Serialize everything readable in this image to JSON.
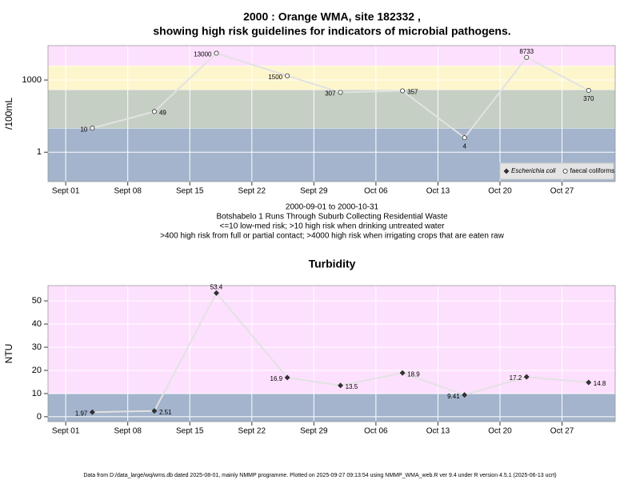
{
  "chart_data": [
    {
      "type": "line",
      "title": [
        "2000 : Orange WMA, site 182332 ,",
        "showing high risk guidelines for indicators of microbial pathogens."
      ],
      "notes": [
        "2000-09-01 to 2000-10-31",
        "Botshabelo 1 Runs Through Suburb Collecting Residential Waste",
        "<=10 low-med risk; >10 high risk when drinking untreated water",
        ">400 high risk from full or partial contact; >4000 high risk when irrigating crops that are eaten raw"
      ],
      "y_label": "/100mL",
      "log_y": true,
      "x": [
        "09-04",
        "09-11",
        "09-18",
        "09-26",
        "10-02",
        "10-09",
        "10-16",
        "10-23",
        "10-30"
      ],
      "series": [
        {
          "name": "Escherichia coli",
          "marker": "diamond",
          "color": "#333333",
          "values": [
            null,
            null,
            null,
            null,
            null,
            null,
            null,
            null,
            null
          ]
        },
        {
          "name": "faecal coliforms",
          "marker": "circle",
          "color": "#ffffff",
          "values": [
            10,
            49,
            13000,
            1500,
            307,
            357,
            4,
            8733,
            370
          ]
        }
      ],
      "line_color": "#e2e2e2",
      "bands": [
        {
          "from": 0.06,
          "to": 10,
          "color": "#a3b4cc"
        },
        {
          "from": 10,
          "to": 400,
          "color": "#c5cfc4"
        },
        {
          "from": 400,
          "to": 4000,
          "color": "#fdf6cc"
        },
        {
          "from": 4000,
          "to": 27000,
          "color": "#fde0fd"
        }
      ],
      "xlim": [
        "08-30",
        "11-02"
      ],
      "xticks": [
        {
          "value": "09-01",
          "label": "Sept 01"
        },
        {
          "value": "09-08",
          "label": "Sept 08"
        },
        {
          "value": "09-15",
          "label": "Sept 15"
        },
        {
          "value": "09-22",
          "label": "Sept 22"
        },
        {
          "value": "09-29",
          "label": "Sept 29"
        },
        {
          "value": "10-06",
          "label": "Oct 06"
        },
        {
          "value": "10-13",
          "label": "Oct 13"
        },
        {
          "value": "10-20",
          "label": "Oct 20"
        },
        {
          "value": "10-27",
          "label": "Oct 27"
        }
      ],
      "ylim": [
        0.06,
        27000
      ],
      "yticks": [
        1,
        1000
      ],
      "grid": true,
      "legend": "bottom right"
    },
    {
      "type": "line",
      "title": [
        "Turbidity"
      ],
      "y_label": "NTU",
      "log_y": false,
      "x": [
        "09-04",
        "09-11",
        "09-18",
        "09-26",
        "10-02",
        "10-09",
        "10-16",
        "10-23",
        "10-30"
      ],
      "values": [
        1.97,
        2.51,
        53.4,
        16.9,
        13.5,
        18.9,
        9.41,
        17.2,
        14.8
      ],
      "marker": "diamond",
      "color": "#333333",
      "line_color": "#e2e2e2",
      "bands": [
        {
          "from": -2.1,
          "to": 10,
          "color": "#a3b4cc"
        },
        {
          "from": 10,
          "to": 56.6,
          "color": "#fde0fd"
        }
      ],
      "xlim": [
        "08-30",
        "11-02"
      ],
      "xticks": [
        {
          "value": "09-01",
          "label": "Sept 01"
        },
        {
          "value": "09-08",
          "label": "Sept 08"
        },
        {
          "value": "09-15",
          "label": "Sept 15"
        },
        {
          "value": "09-22",
          "label": "Sept 22"
        },
        {
          "value": "09-29",
          "label": "Sept 29"
        },
        {
          "value": "10-06",
          "label": "Oct 06"
        },
        {
          "value": "10-13",
          "label": "Oct 13"
        },
        {
          "value": "10-20",
          "label": "Oct 20"
        },
        {
          "value": "10-27",
          "label": "Oct 27"
        }
      ],
      "ylim": [
        -2.1,
        56.6
      ],
      "yticks": [
        0,
        10,
        20,
        30,
        40,
        50
      ],
      "grid": true
    }
  ],
  "footer": "Data from D:/data_large/wq/wms.db dated 2025-08-01, mainly NMMP programme. Plotted on 2025-09-27 09:13:54 using NMMP_WMA_web.R ver 9.4 under R version 4.5.1 (2025-06-13 ucrt)"
}
